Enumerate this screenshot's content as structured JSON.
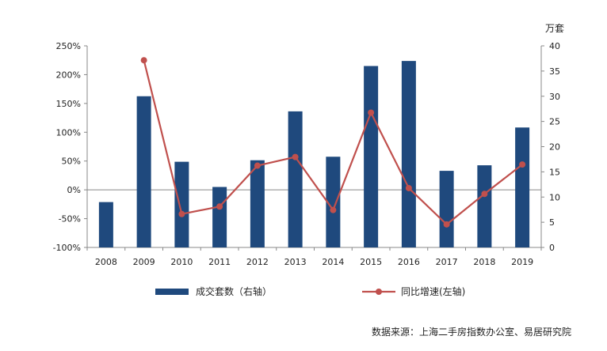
{
  "chart_data": {
    "type": "bar",
    "categories": [
      "2008",
      "2009",
      "2010",
      "2011",
      "2012",
      "2013",
      "2014",
      "2015",
      "2016",
      "2017",
      "2018",
      "2019"
    ],
    "series": [
      {
        "name": "成交套数（右轴）",
        "type": "bar",
        "axis": "right",
        "color": "#1f497d",
        "values": [
          9,
          30,
          17,
          12,
          17.3,
          27,
          18,
          36,
          37,
          15.2,
          16.3,
          23.8
        ]
      },
      {
        "name": "同比增速(左轴)",
        "type": "line",
        "axis": "left",
        "color": "#c0504d",
        "values": [
          null,
          225,
          -42,
          -29,
          42,
          57,
          -35,
          134,
          3,
          -60,
          -7,
          44
        ]
      }
    ],
    "left_axis": {
      "ylim": [
        -100,
        250
      ],
      "ticks": [
        -100,
        -50,
        0,
        50,
        100,
        150,
        200,
        250
      ],
      "tick_labels": [
        "-100%",
        "-50%",
        "0%",
        "50%",
        "100%",
        "150%",
        "200%",
        "250%"
      ]
    },
    "right_axis": {
      "unit": "万套",
      "ylim": [
        0,
        40
      ],
      "ticks": [
        0,
        5,
        10,
        15,
        20,
        25,
        30,
        35,
        40
      ],
      "tick_labels": [
        "0",
        "5",
        "10",
        "15",
        "20",
        "25",
        "30",
        "35",
        "40"
      ]
    },
    "grid": false,
    "legend_position": "bottom",
    "source": "数据来源：上海二手房指数办公室、易居研究院"
  }
}
